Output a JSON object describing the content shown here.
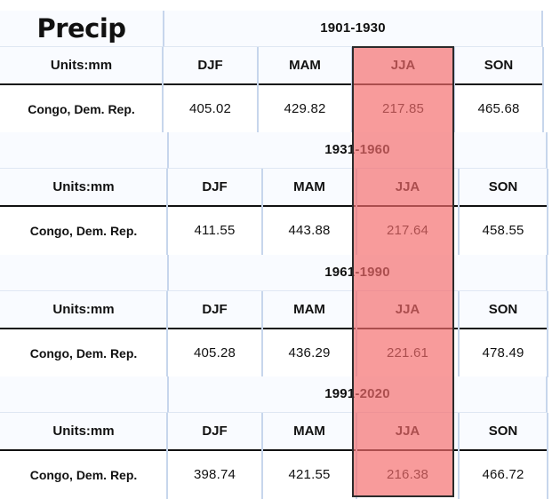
{
  "chart_data": {
    "type": "table",
    "title": "Precip",
    "units_label": "Units:mm",
    "columns": [
      "DJF",
      "MAM",
      "JJA",
      "SON"
    ],
    "highlighted_column": "JJA",
    "highlight_color": "#f46c6c",
    "blocks": [
      {
        "period": "1901-1930",
        "country": "Congo, Dem. Rep.",
        "values": [
          "405.02",
          "429.82",
          "217.85",
          "465.68"
        ]
      },
      {
        "period": "1931-1960",
        "country": "Congo, Dem. Rep.",
        "values": [
          "411.55",
          "443.88",
          "217.64",
          "458.55"
        ]
      },
      {
        "period": "1961-1990",
        "country": "Congo, Dem. Rep.",
        "values": [
          "405.28",
          "436.29",
          "221.61",
          "478.49"
        ]
      },
      {
        "period": "1991-2020",
        "country": "Congo, Dem. Rep.",
        "values": [
          "398.74",
          "421.55",
          "216.38",
          "466.72"
        ]
      }
    ]
  }
}
